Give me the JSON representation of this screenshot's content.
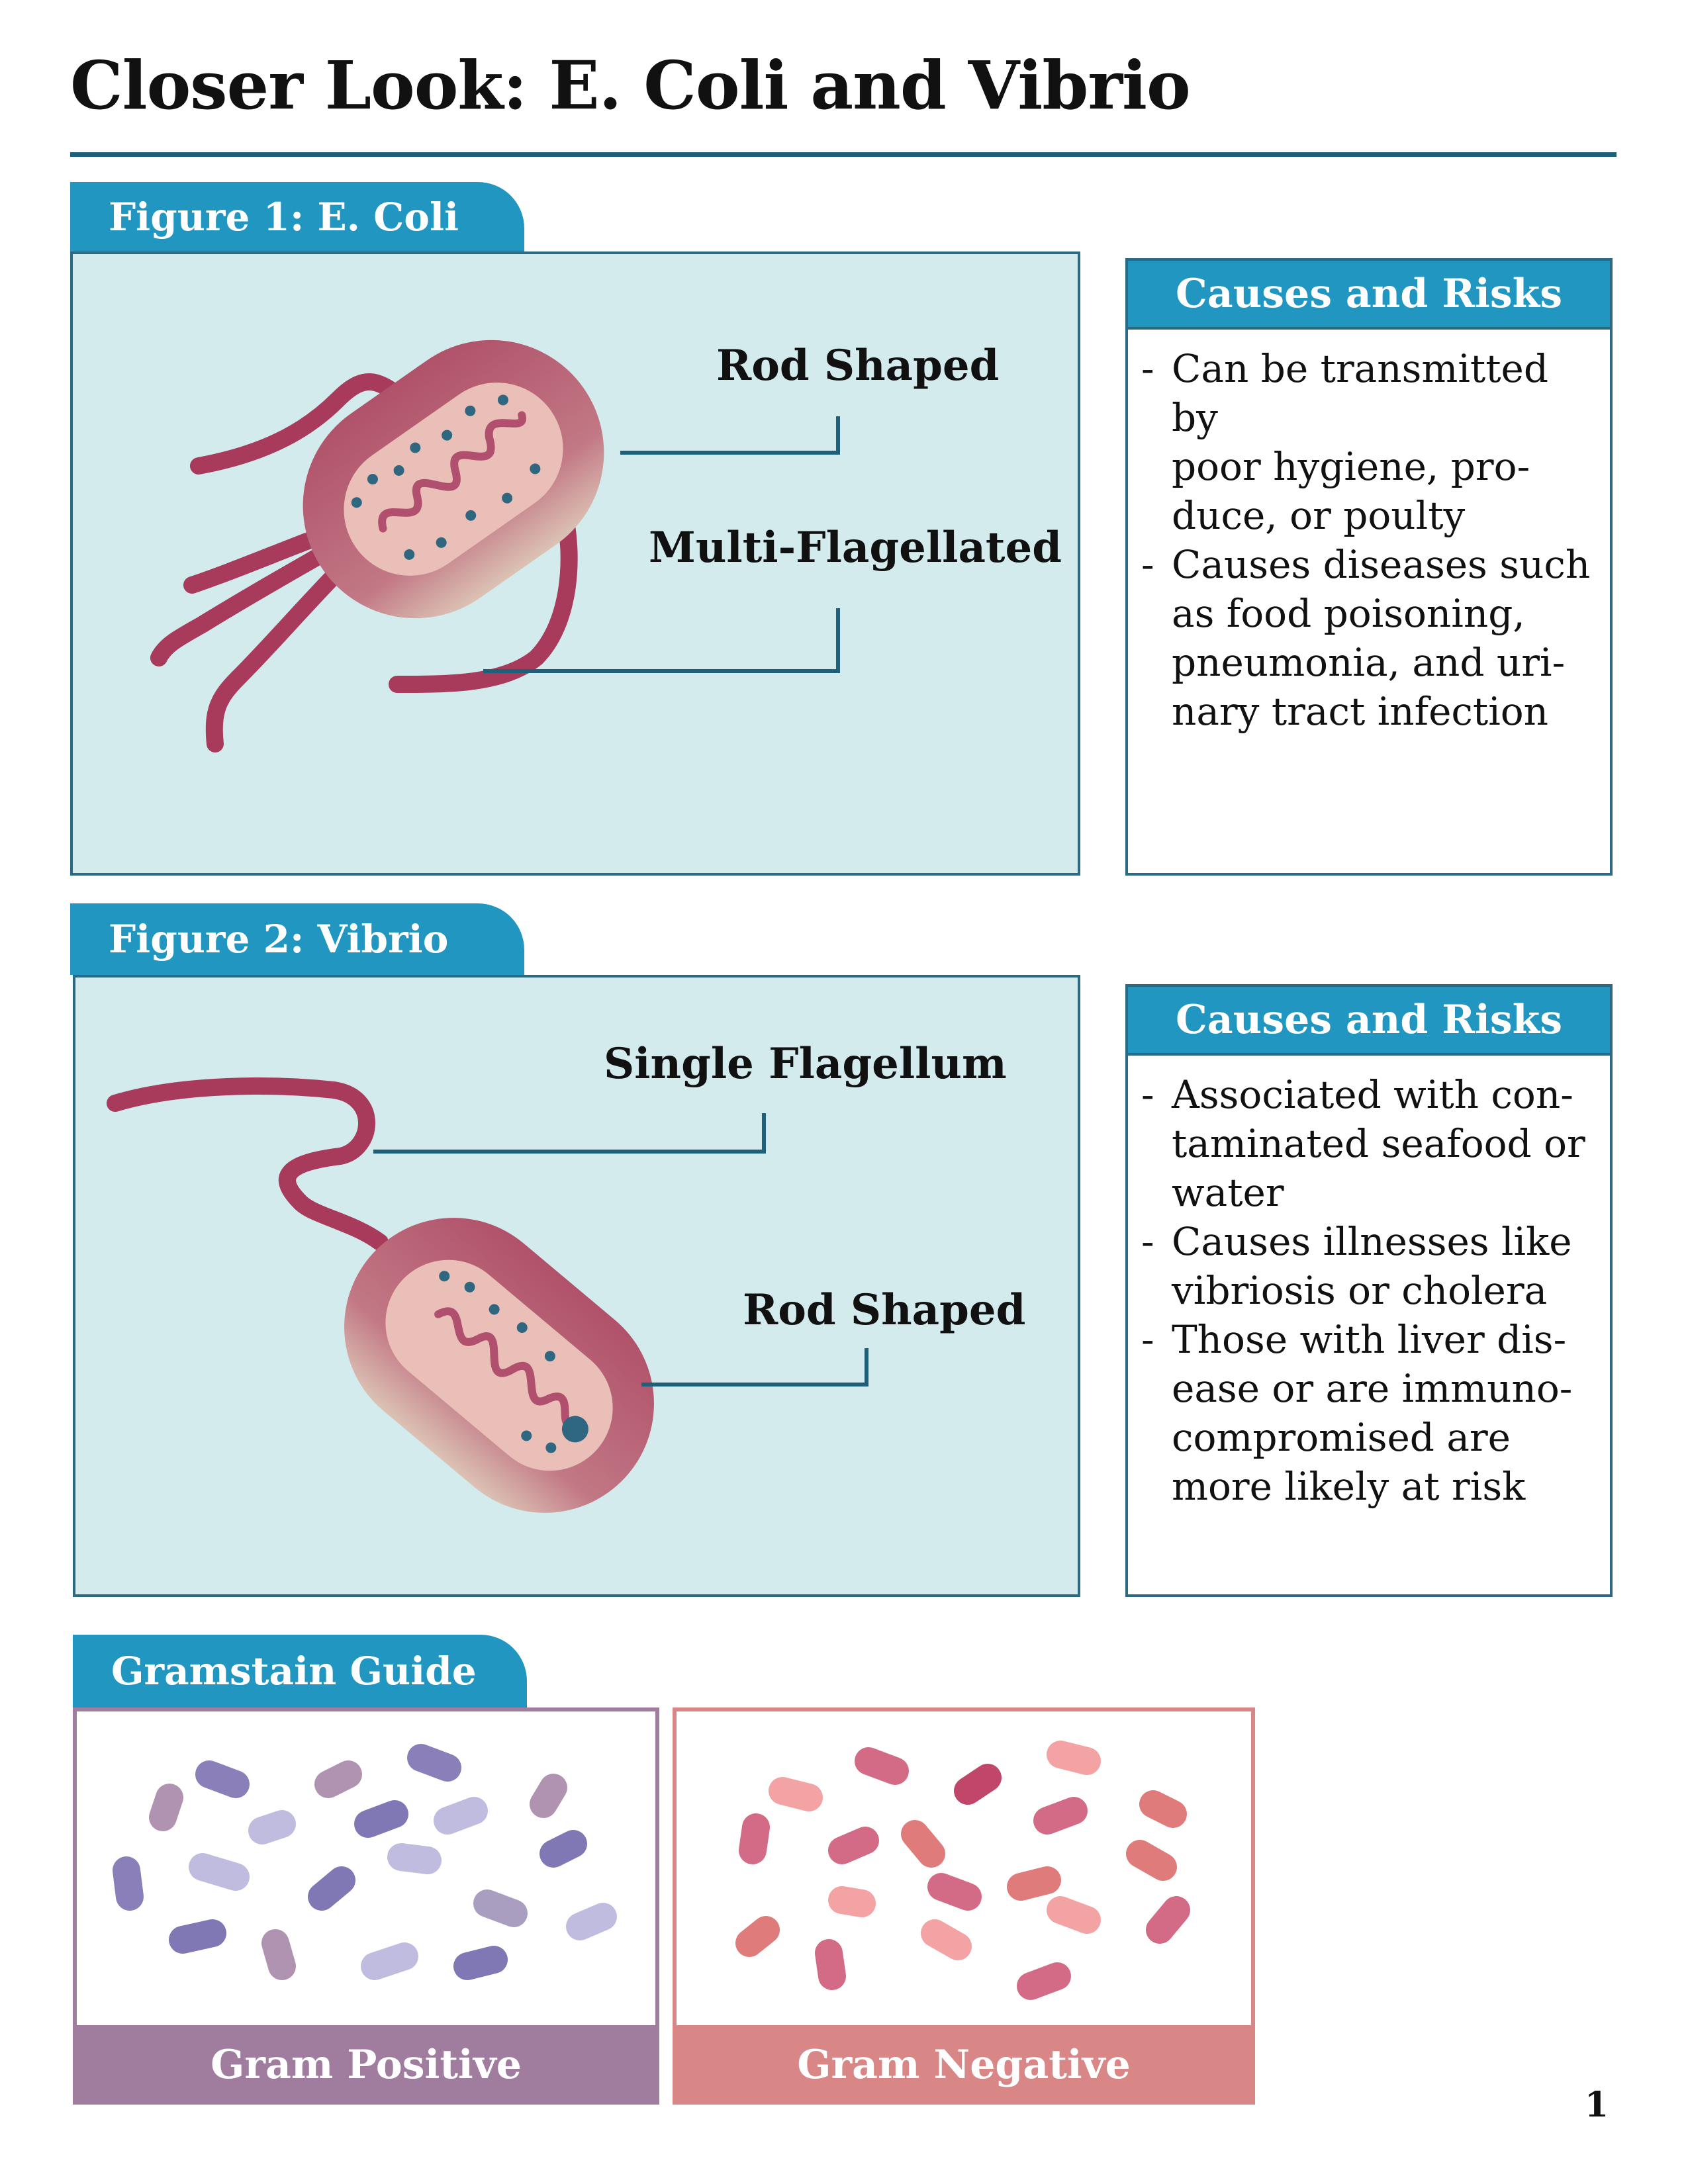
{
  "page": {
    "title": "Closer Look: E. Coli and Vibrio",
    "page_number": "1"
  },
  "figure1": {
    "tab": "Figure 1: E. Coli",
    "label_rod": "Rod Shaped",
    "label_flagella": "Multi-Flagellated",
    "causes_title": "Causes and Risks",
    "bullets": [
      [
        "Can be transmitted by",
        "poor hygiene, pro-",
        "duce, or poulty"
      ],
      [
        "Causes diseases such",
        "as food poisoning,",
        "pneumonia, and uri-",
        "nary tract infection"
      ]
    ]
  },
  "figure2": {
    "tab": "Figure 2: Vibrio",
    "label_flagellum": "Single Flagellum",
    "label_rod": "Rod Shaped",
    "causes_title": "Causes and Risks",
    "bullets": [
      [
        "Associated with con-",
        "taminated seafood or",
        "water"
      ],
      [
        "Causes illnesses like",
        "vibriosis or cholera"
      ],
      [
        "Those with liver dis-",
        "ease or are immuno-",
        "compromised are",
        "more likely at risk"
      ]
    ]
  },
  "gramstain": {
    "tab": "Gramstain Guide",
    "positive_label": "Gram Positive",
    "negative_label": "Gram Negative"
  },
  "colors": {
    "accent_blue": "#2196c0",
    "rule_navy": "#1e5f7a",
    "panel_bg": "#d3ebed",
    "bacterium_body": "#b55a70",
    "flagella": "#a83a5c",
    "gram_positive_frame": "#a07c9e",
    "gram_negative_frame": "#d98686"
  }
}
